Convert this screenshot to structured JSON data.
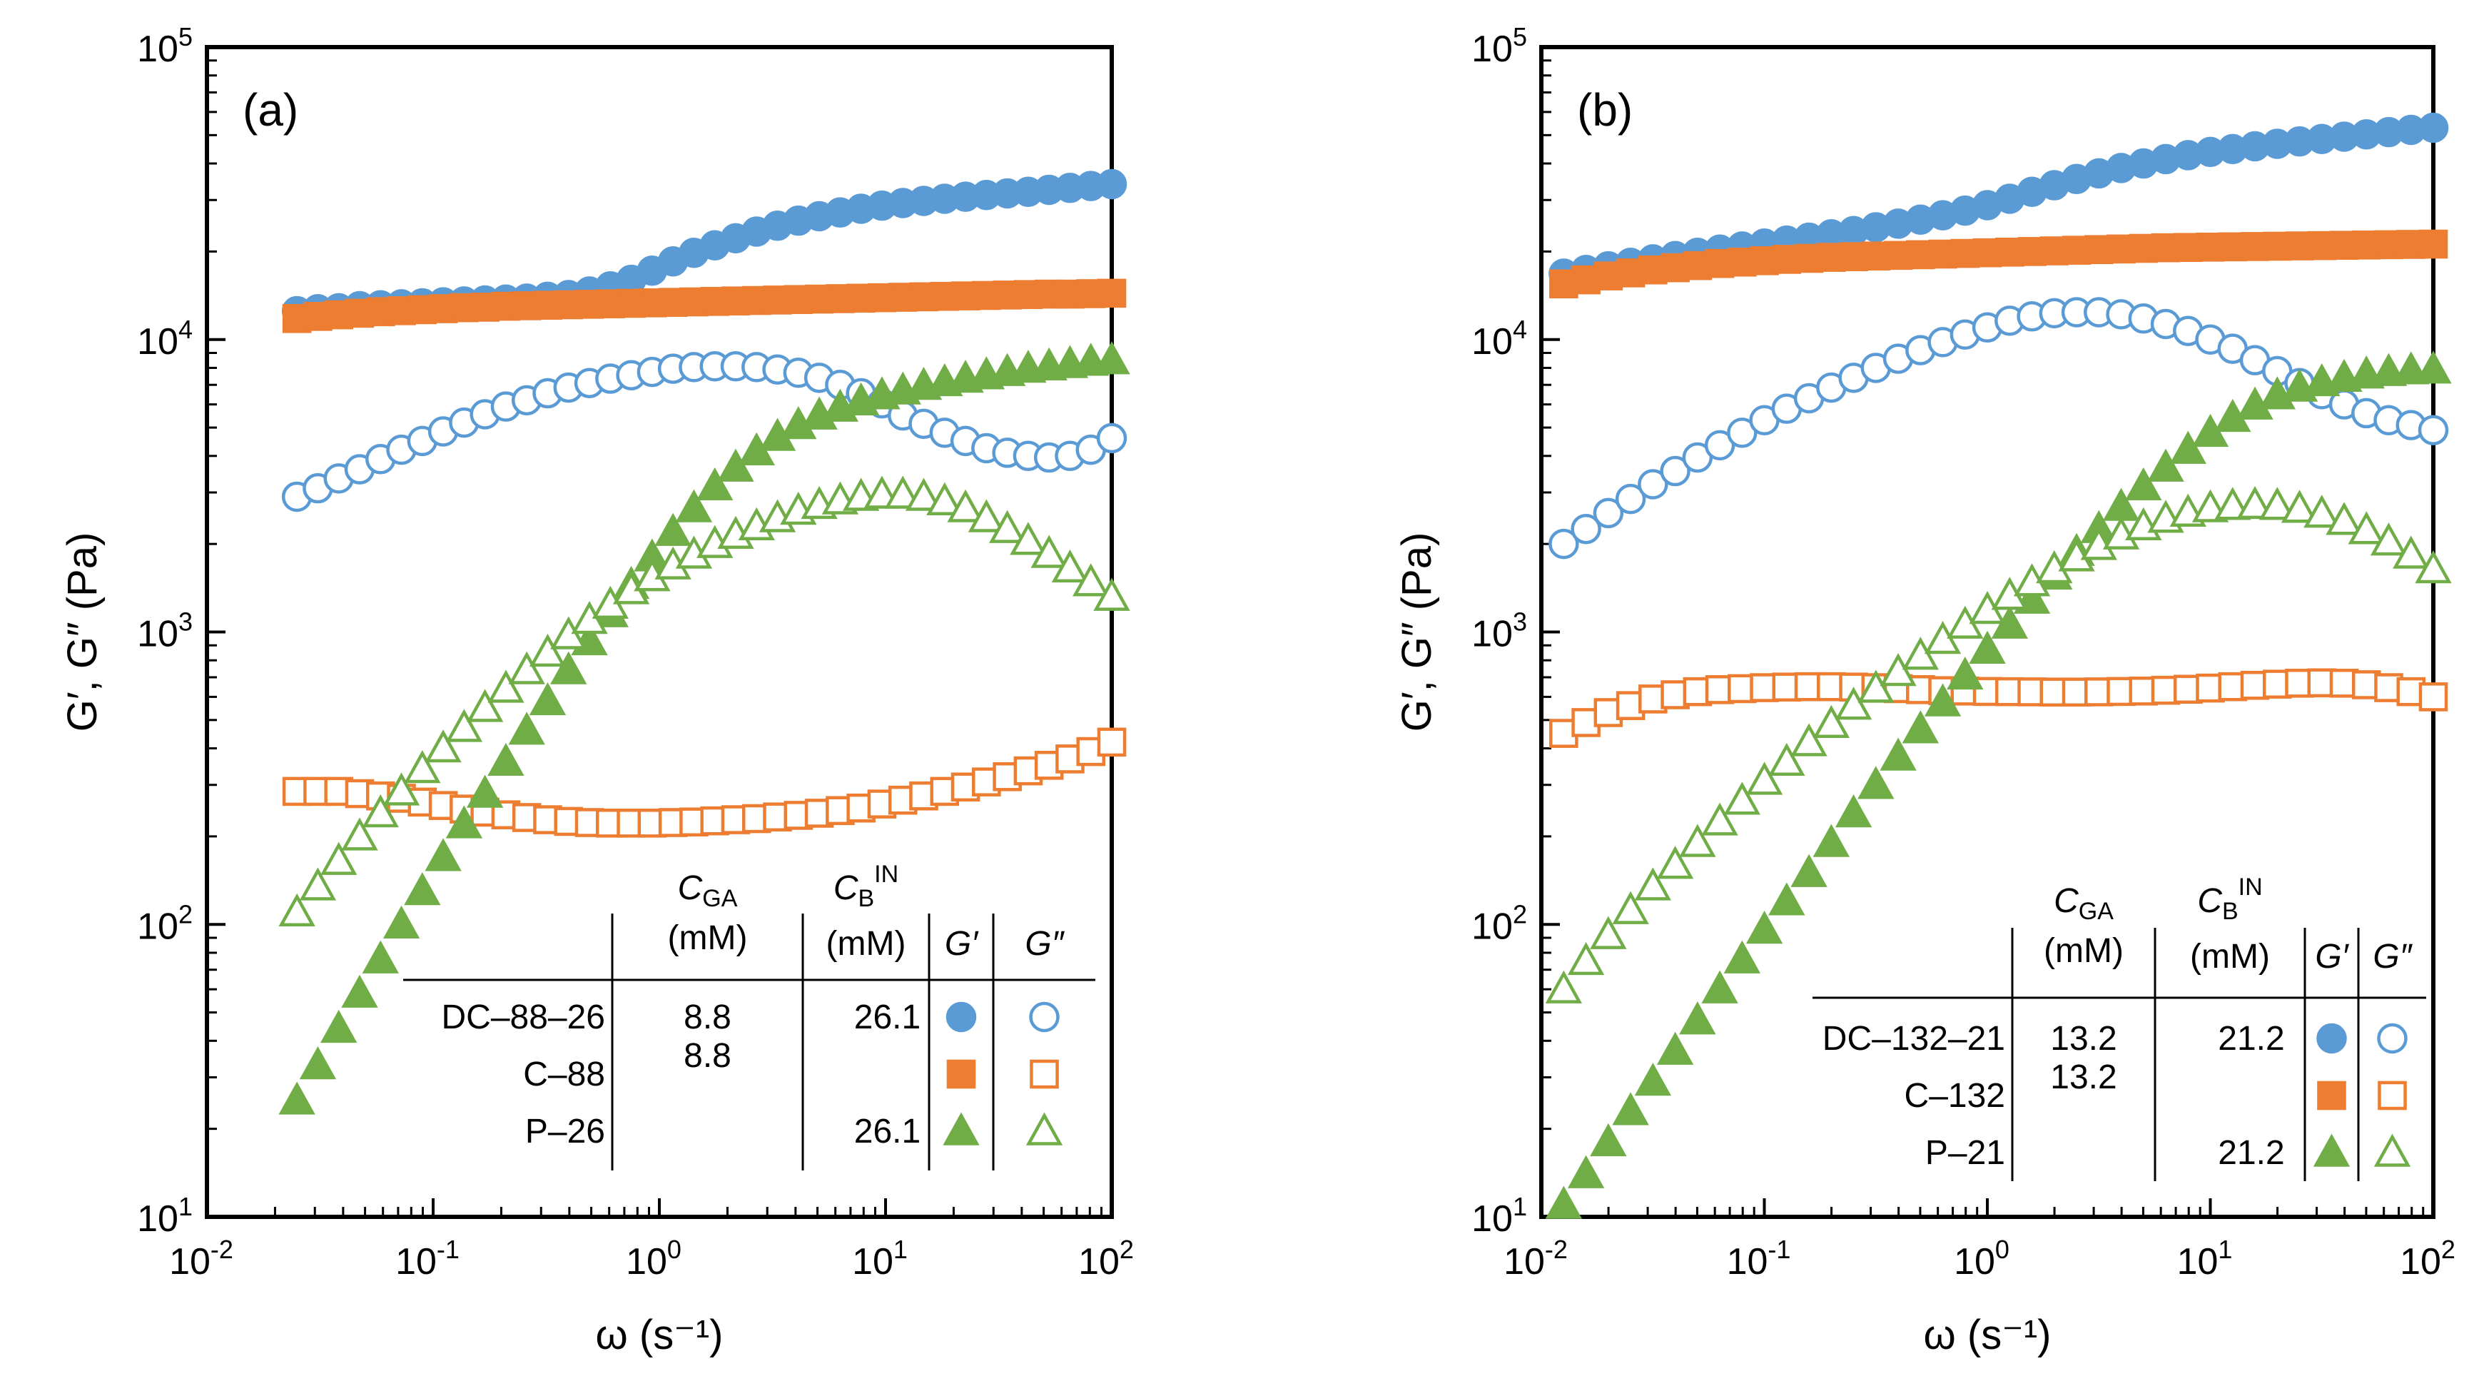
{
  "chart_data": [
    {
      "type": "scatter",
      "panel_label": "(a)",
      "xlabel": "ω (s⁻¹)",
      "ylabel": "G′, G″ (Pa)",
      "x_scale": "log",
      "y_scale": "log",
      "xlim": [
        0.01,
        100
      ],
      "ylim": [
        10,
        100000
      ],
      "x_ticks": [
        {
          "mant": "10",
          "exp": "-2"
        },
        {
          "mant": "10",
          "exp": "-1"
        },
        {
          "mant": "10",
          "exp": "0"
        },
        {
          "mant": "10",
          "exp": "1"
        },
        {
          "mant": "10",
          "exp": "2"
        }
      ],
      "y_ticks": [
        {
          "mant": "10",
          "exp": "1"
        },
        {
          "mant": "10",
          "exp": "2"
        },
        {
          "mant": "10",
          "exp": "3"
        },
        {
          "mant": "10",
          "exp": "4"
        },
        {
          "mant": "10",
          "exp": "5"
        }
      ],
      "x_range": [
        0.025,
        100
      ],
      "n_points": 40,
      "series": [
        {
          "sample": "DC–88–26",
          "modulus": "G′",
          "marker": "circle",
          "filled": true,
          "color": "#5B9BD5",
          "y": [
            12500,
            12700,
            12800,
            13000,
            13100,
            13200,
            13300,
            13400,
            13500,
            13600,
            13700,
            13800,
            14000,
            14200,
            14600,
            15200,
            16000,
            17200,
            18500,
            19800,
            21000,
            22200,
            23400,
            24500,
            25500,
            26400,
            27200,
            28000,
            28700,
            29300,
            29800,
            30300,
            30800,
            31200,
            31600,
            32000,
            32500,
            33000,
            33500,
            34000
          ]
        },
        {
          "sample": "DC–88–26",
          "modulus": "G″",
          "marker": "circle",
          "filled": false,
          "color": "#5B9BD5",
          "y": [
            2900,
            3100,
            3350,
            3600,
            3900,
            4200,
            4500,
            4850,
            5200,
            5550,
            5900,
            6200,
            6550,
            6850,
            7100,
            7350,
            7550,
            7750,
            7950,
            8050,
            8100,
            8100,
            8050,
            7900,
            7700,
            7400,
            7000,
            6550,
            6050,
            5500,
            5150,
            4800,
            4500,
            4250,
            4100,
            4000,
            3950,
            4000,
            4200,
            4600
          ]
        },
        {
          "sample": "C–88",
          "modulus": "G′",
          "marker": "square",
          "filled": true,
          "color": "#ED7D31",
          "y": [
            11800,
            12000,
            12150,
            12300,
            12450,
            12550,
            12650,
            12750,
            12850,
            12900,
            13000,
            13050,
            13100,
            13150,
            13200,
            13250,
            13300,
            13350,
            13400,
            13450,
            13500,
            13550,
            13600,
            13650,
            13700,
            13750,
            13800,
            13850,
            13900,
            13950,
            14000,
            14050,
            14100,
            14150,
            14200,
            14250,
            14300,
            14300,
            14350,
            14400
          ]
        },
        {
          "sample": "C–88",
          "modulus": "G″",
          "marker": "square",
          "filled": false,
          "color": "#ED7D31",
          "y": [
            285,
            285,
            285,
            280,
            275,
            270,
            262,
            255,
            248,
            242,
            237,
            232,
            228,
            225,
            223,
            222,
            222,
            222,
            223,
            224,
            226,
            228,
            230,
            233,
            236,
            240,
            245,
            250,
            258,
            266,
            275,
            285,
            295,
            307,
            320,
            335,
            350,
            368,
            390,
            420
          ]
        },
        {
          "sample": "P–26",
          "modulus": "G′",
          "marker": "triangle",
          "filled": true,
          "color": "#70AD47",
          "y": [
            25,
            33,
            44,
            58,
            76,
            100,
            130,
            170,
            220,
            280,
            360,
            460,
            580,
            740,
            930,
            1160,
            1450,
            1800,
            2200,
            2650,
            3150,
            3650,
            4150,
            4650,
            5100,
            5500,
            5850,
            6150,
            6450,
            6700,
            6950,
            7150,
            7350,
            7550,
            7750,
            7950,
            8100,
            8250,
            8400,
            8500
          ]
        },
        {
          "sample": "P–26",
          "modulus": "G″",
          "marker": "triangle",
          "filled": false,
          "color": "#70AD47",
          "y": [
            110,
            135,
            165,
            200,
            240,
            285,
            340,
            400,
            470,
            550,
            640,
            740,
            850,
            975,
            1100,
            1240,
            1390,
            1540,
            1690,
            1840,
            2000,
            2150,
            2300,
            2450,
            2600,
            2720,
            2820,
            2900,
            2950,
            2950,
            2900,
            2800,
            2650,
            2450,
            2250,
            2050,
            1850,
            1650,
            1480,
            1320
          ]
        }
      ],
      "table": {
        "headers": {
          "cga": "C",
          "cga_sub": "GA",
          "cga_unit": "(mM)",
          "cb": "C",
          "cb_sub": "B",
          "cb_sup": "IN",
          "cb_unit": "(mM)",
          "gp": "G′",
          "gpp": "G″"
        },
        "rows": [
          {
            "name": "DC–88–26",
            "cga": "8.8",
            "cb": "26.1"
          },
          {
            "name": "C–88",
            "cga": "8.8",
            "cb": ""
          },
          {
            "name": "P–26",
            "cga": "",
            "cb": "26.1"
          }
        ]
      }
    },
    {
      "type": "scatter",
      "panel_label": "(b)",
      "xlabel": "ω (s⁻¹)",
      "ylabel": "G′, G″ (Pa)",
      "x_scale": "log",
      "y_scale": "log",
      "xlim": [
        0.01,
        100
      ],
      "ylim": [
        10,
        100000
      ],
      "x_ticks": [
        {
          "mant": "10",
          "exp": "-2"
        },
        {
          "mant": "10",
          "exp": "-1"
        },
        {
          "mant": "10",
          "exp": "0"
        },
        {
          "mant": "10",
          "exp": "1"
        },
        {
          "mant": "10",
          "exp": "2"
        }
      ],
      "y_ticks": [
        {
          "mant": "10",
          "exp": "1"
        },
        {
          "mant": "10",
          "exp": "2"
        },
        {
          "mant": "10",
          "exp": "3"
        },
        {
          "mant": "10",
          "exp": "4"
        },
        {
          "mant": "10",
          "exp": "5"
        }
      ],
      "x_range": [
        0.0126,
        100
      ],
      "n_points": 40,
      "series": [
        {
          "sample": "DC–132–21",
          "modulus": "G′",
          "marker": "circle",
          "filled": true,
          "color": "#5B9BD5",
          "y": [
            16800,
            17300,
            17800,
            18300,
            18800,
            19300,
            19800,
            20300,
            20800,
            21300,
            21800,
            22300,
            22900,
            23500,
            24200,
            24900,
            25700,
            26600,
            27600,
            28800,
            30300,
            32000,
            33700,
            35400,
            37000,
            38600,
            40000,
            41400,
            42700,
            43800,
            44800,
            45800,
            46700,
            47600,
            48500,
            49400,
            50300,
            51200,
            52100,
            53000
          ]
        },
        {
          "sample": "DC–132–21",
          "modulus": "G″",
          "marker": "circle",
          "filled": false,
          "color": "#5B9BD5",
          "y": [
            2000,
            2250,
            2550,
            2850,
            3200,
            3550,
            3950,
            4350,
            4800,
            5300,
            5800,
            6300,
            6850,
            7400,
            8000,
            8600,
            9200,
            9800,
            10400,
            11000,
            11600,
            12000,
            12300,
            12400,
            12400,
            12200,
            11800,
            11300,
            10700,
            10000,
            9300,
            8500,
            7800,
            7100,
            6500,
            6000,
            5600,
            5300,
            5100,
            4900
          ]
        },
        {
          "sample": "C–132",
          "modulus": "G′",
          "marker": "square",
          "filled": true,
          "color": "#ED7D31",
          "y": [
            15500,
            16000,
            16500,
            16900,
            17300,
            17600,
            17900,
            18200,
            18400,
            18600,
            18800,
            18950,
            19100,
            19200,
            19300,
            19400,
            19500,
            19600,
            19700,
            19800,
            19900,
            20000,
            20100,
            20200,
            20300,
            20400,
            20500,
            20600,
            20650,
            20700,
            20750,
            20800,
            20850,
            20900,
            20950,
            21000,
            21050,
            21100,
            21150,
            21200
          ]
        },
        {
          "sample": "C–132",
          "modulus": "G″",
          "marker": "square",
          "filled": false,
          "color": "#ED7D31",
          "y": [
            450,
            490,
            530,
            560,
            590,
            610,
            625,
            635,
            640,
            645,
            648,
            650,
            650,
            648,
            645,
            640,
            635,
            630,
            628,
            626,
            625,
            624,
            623,
            623,
            624,
            626,
            628,
            632,
            637,
            643,
            650,
            657,
            663,
            668,
            670,
            668,
            660,
            645,
            625,
            600
          ]
        },
        {
          "sample": "P–21",
          "modulus": "G′",
          "marker": "triangle",
          "filled": true,
          "color": "#70AD47",
          "y": [
            11,
            14,
            18,
            23,
            29,
            37,
            47,
            60,
            76,
            96,
            120,
            150,
            190,
            240,
            300,
            375,
            465,
            575,
            710,
            870,
            1060,
            1290,
            1560,
            1880,
            2250,
            2680,
            3150,
            3650,
            4200,
            4800,
            5400,
            5950,
            6450,
            6850,
            7150,
            7400,
            7600,
            7750,
            7850,
            7900
          ]
        },
        {
          "sample": "P–21",
          "modulus": "G″",
          "marker": "triangle",
          "filled": false,
          "color": "#70AD47",
          "y": [
            60,
            75,
            92,
            112,
            135,
            160,
            190,
            225,
            265,
            310,
            360,
            420,
            485,
            560,
            640,
            730,
            830,
            940,
            1060,
            1190,
            1330,
            1480,
            1640,
            1800,
            1970,
            2140,
            2300,
            2440,
            2560,
            2650,
            2700,
            2720,
            2700,
            2640,
            2540,
            2400,
            2230,
            2040,
            1840,
            1640
          ]
        }
      ],
      "table": {
        "headers": {
          "cga": "C",
          "cga_sub": "GA",
          "cga_unit": "(mM)",
          "cb": "C",
          "cb_sub": "B",
          "cb_sup": "IN",
          "cb_unit": "(mM)",
          "gp": "G′",
          "gpp": "G″"
        },
        "rows": [
          {
            "name": "DC–132–21",
            "cga": "13.2",
            "cb": "21.2"
          },
          {
            "name": "C–132",
            "cga": "13.2",
            "cb": ""
          },
          {
            "name": "P–21",
            "cga": "",
            "cb": "21.2"
          }
        ]
      }
    }
  ]
}
